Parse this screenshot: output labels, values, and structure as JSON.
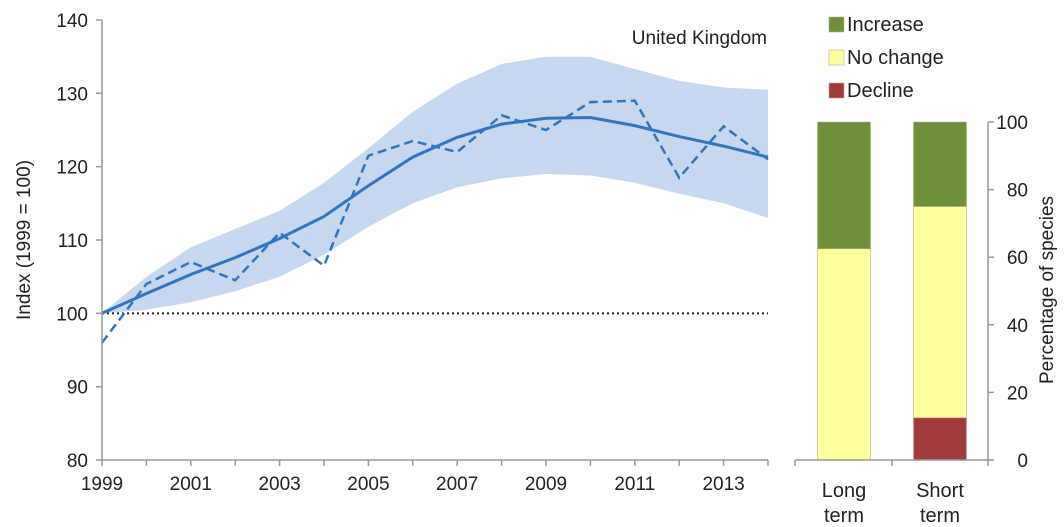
{
  "chart_data": [
    {
      "type": "line",
      "title": "United Kingdom",
      "xlabel": "",
      "ylabel": "Index (1999 = 100)",
      "xlim": [
        1999,
        2014
      ],
      "ylim": [
        80,
        140
      ],
      "x_tick_labels": [
        "1999",
        "2001",
        "2003",
        "2005",
        "2007",
        "2009",
        "2011",
        "2013"
      ],
      "y_tick_labels": [
        "80",
        "90",
        "100",
        "110",
        "120",
        "130",
        "140"
      ],
      "baseline": 100,
      "x": [
        1999,
        2000,
        2001,
        2002,
        2003,
        2004,
        2005,
        2006,
        2007,
        2008,
        2009,
        2010,
        2011,
        2012,
        2013,
        2014
      ],
      "series": [
        {
          "style": "dashed",
          "values": [
            96.0,
            104.0,
            107.0,
            104.5,
            111.0,
            106.5,
            121.5,
            123.5,
            122.0,
            127.0,
            125.0,
            128.8,
            129.0,
            118.5,
            125.5,
            121.0
          ]
        },
        {
          "style": "solid",
          "values": [
            100.0,
            102.7,
            105.3,
            107.6,
            110.2,
            113.2,
            117.4,
            121.3,
            124.0,
            125.8,
            126.6,
            126.7,
            125.6,
            124.1,
            122.8,
            121.3
          ]
        }
      ],
      "confidence_band": {
        "lower": [
          100.0,
          100.5,
          101.5,
          103.0,
          105.0,
          108.0,
          111.8,
          115.0,
          117.2,
          118.4,
          119.0,
          118.8,
          117.8,
          116.3,
          115.0,
          113.0
        ],
        "upper": [
          100.0,
          105.0,
          109.0,
          111.5,
          114.0,
          117.8,
          122.5,
          127.5,
          131.3,
          134.0,
          135.0,
          135.0,
          133.3,
          131.7,
          130.8,
          130.5
        ]
      },
      "colors": {
        "line": "#2f76c0",
        "band": "#c6d8f0",
        "baseline": "#222222"
      }
    },
    {
      "type": "bar",
      "stacked": true,
      "categories": [
        "Long term",
        "Short term"
      ],
      "ylabel": "Percentage of species",
      "ylim": [
        0,
        100
      ],
      "y_tick_labels": [
        "0",
        "20",
        "40",
        "60",
        "80",
        "100"
      ],
      "legend_position": "top",
      "series": [
        {
          "name": "Decline",
          "values": [
            0,
            12.5
          ],
          "color": "#a33a3a"
        },
        {
          "name": "No change",
          "values": [
            62.5,
            62.5
          ],
          "color": "#ffff9e"
        },
        {
          "name": "Increase",
          "values": [
            37.5,
            25
          ],
          "color": "#6f8f3b"
        }
      ]
    }
  ]
}
